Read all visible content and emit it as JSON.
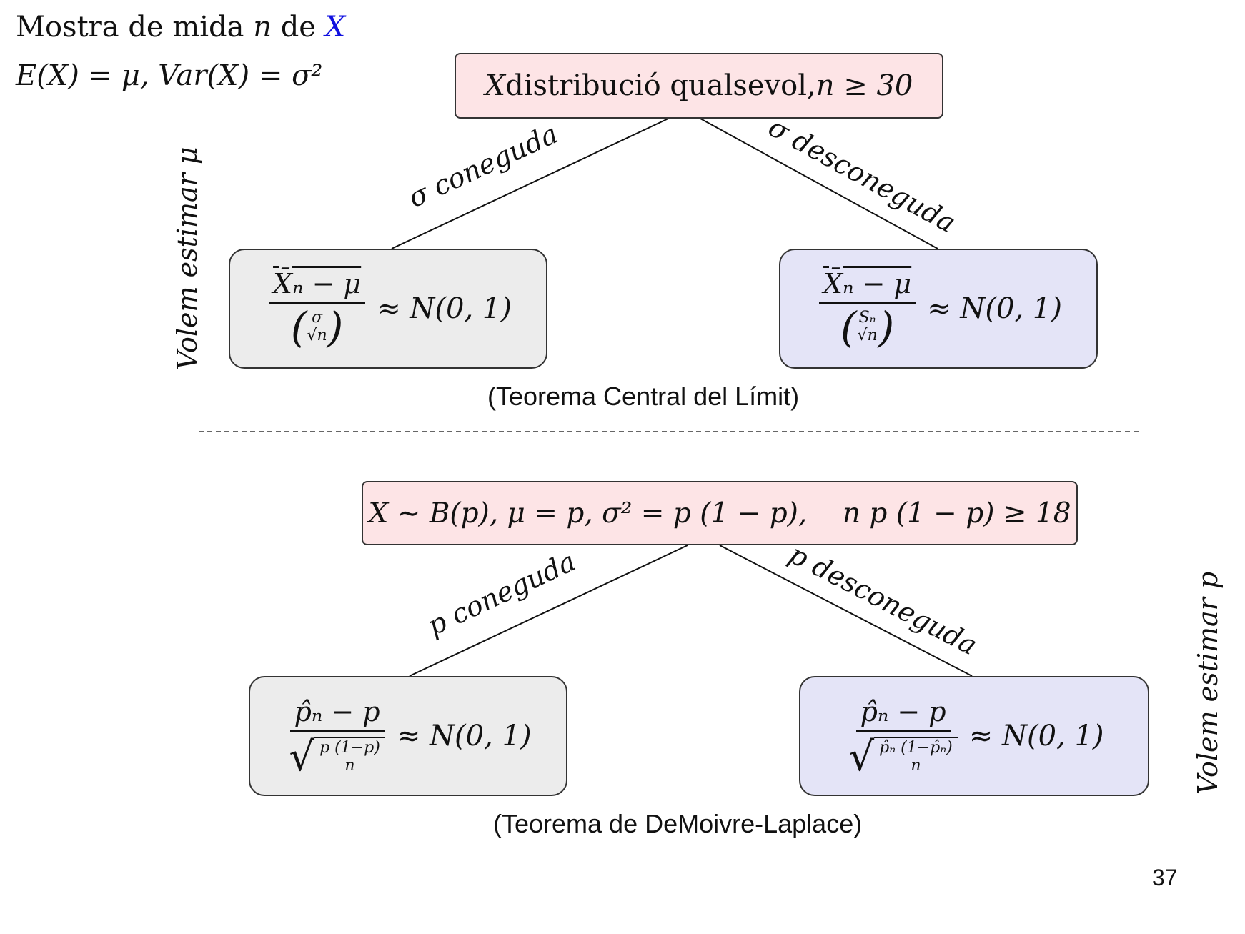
{
  "header": {
    "line1_prefix": "Mostra de mida ",
    "line1_n": "n",
    "line1_mid": " de ",
    "line1_X": "X",
    "line2": "E(X) = μ,    Var(X) = σ²"
  },
  "top": {
    "root": {
      "var": "X",
      "text": " distribució qualsevol, ",
      "cond": "n ≥ 30"
    },
    "edge_left": "σ coneguda",
    "edge_right": "σ desconeguda",
    "side_label": "Volem estimar μ",
    "left_formula": {
      "num": "X̄ₙ − μ",
      "den_num": "σ",
      "den_den": "√n",
      "rhs": "≈ N(0, 1)"
    },
    "right_formula": {
      "num": "X̄ₙ − μ",
      "den_num": "Sₙ",
      "den_den": "√n",
      "rhs": "≈ N(0, 1)"
    },
    "caption": "(Teorema Central del Límit)"
  },
  "bottom": {
    "root": {
      "text": "X ∼ B(p), μ = p, σ² = p (1 − p),    n p (1 − p) ≥ 18"
    },
    "edge_left": "p coneguda",
    "edge_right": "p desconeguda",
    "side_label": "Volem estimar p",
    "left_formula": {
      "num": "p̂ₙ − p",
      "rad_num": "p (1−p)",
      "rad_den": "n",
      "rhs": "≈ N(0, 1)"
    },
    "right_formula": {
      "num": "p̂ₙ − p",
      "rad_num": "p̂ₙ (1−p̂ₙ)",
      "rad_den": "n",
      "rhs": "≈ N(0, 1)"
    },
    "caption": "(Teorema de DeMoivre-Laplace)"
  },
  "page_number": "37",
  "colors": {
    "root_fill": "#fde4e6",
    "left_fill": "#ececec",
    "right_fill": "#e4e4f7",
    "accent_X": "#1010e0"
  }
}
